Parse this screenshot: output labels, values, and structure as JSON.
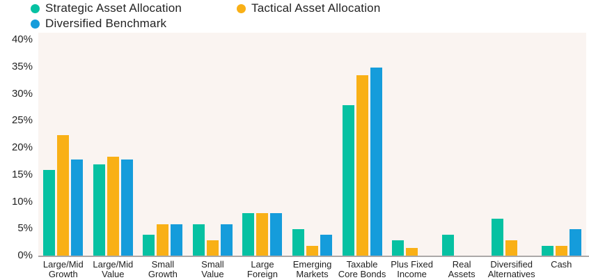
{
  "chart_data": {
    "type": "bar",
    "title": "",
    "legend_position": "top-left",
    "grid": false,
    "ylim": [
      0,
      40
    ],
    "yticks": [
      {
        "value": 40,
        "label": "40%"
      },
      {
        "value": 35,
        "label": "35%"
      },
      {
        "value": 30,
        "label": "30%"
      },
      {
        "value": 25,
        "label": "25%"
      },
      {
        "value": 20,
        "label": "20%"
      },
      {
        "value": 15,
        "label": "15%"
      },
      {
        "value": 10,
        "label": "10%"
      },
      {
        "value": 5,
        "label": "5%"
      },
      {
        "value": 0,
        "label": "0%"
      }
    ],
    "categories": [
      [
        "Large/Mid",
        "Growth"
      ],
      [
        "Large/Mid",
        "Value"
      ],
      [
        "Small",
        "Growth"
      ],
      [
        "Small",
        "Value"
      ],
      [
        "Large",
        "Foreign"
      ],
      [
        "Emerging",
        "Markets"
      ],
      [
        "Taxable",
        "Core Bonds"
      ],
      [
        "Plus Fixed",
        "Income"
      ],
      [
        "Real",
        "Assets"
      ],
      [
        "Diversified",
        "Alternatives"
      ],
      [
        "Cash"
      ]
    ],
    "series": [
      {
        "name": "Strategic Asset Allocation",
        "color": "#06C1A2",
        "values": [
          16,
          17,
          4,
          6,
          8,
          5,
          28,
          3,
          4,
          7,
          2
        ]
      },
      {
        "name": "Tactical Asset Allocation",
        "color": "#F9B016",
        "values": [
          22.5,
          18.5,
          6,
          3,
          8,
          2,
          33.5,
          1.5,
          null,
          3,
          2
        ]
      },
      {
        "name": "Diversified Benchmark",
        "color": "#159CDB",
        "values": [
          18,
          18,
          6,
          6,
          8,
          4,
          35,
          null,
          null,
          null,
          5
        ]
      }
    ],
    "colors": {
      "plot_background": "#FAF4F1",
      "axis_line": "#ABA8A8",
      "text": "#232323"
    }
  }
}
